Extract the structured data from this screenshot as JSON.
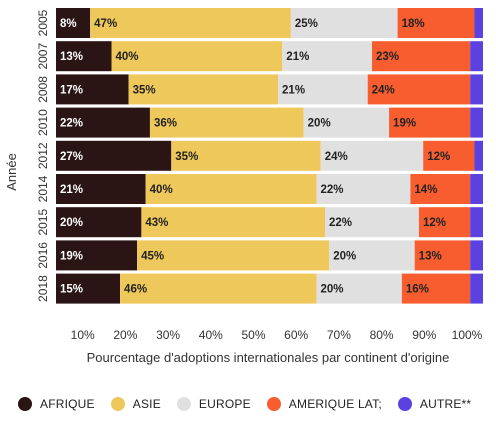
{
  "chart_data": {
    "type": "bar",
    "orientation": "horizontal",
    "stacked": true,
    "percent": true,
    "categories": [
      "2005",
      "2007",
      "2008",
      "2010",
      "2012",
      "2014",
      "2015",
      "2016",
      "2018"
    ],
    "series": [
      {
        "name": "AFRIQUE",
        "values": [
          8,
          13,
          17,
          22,
          27,
          21,
          20,
          19,
          15
        ],
        "color": "#2a1414"
      },
      {
        "name": "ASIE",
        "values": [
          47,
          40,
          35,
          36,
          35,
          40,
          43,
          45,
          46
        ],
        "color": "#eec85a"
      },
      {
        "name": "EUROPE",
        "values": [
          25,
          21,
          21,
          20,
          24,
          22,
          22,
          20,
          20
        ],
        "color": "#e0e0e0"
      },
      {
        "name": "AMERIQUE LAT;",
        "values": [
          18,
          23,
          24,
          19,
          12,
          14,
          12,
          13,
          16
        ],
        "color": "#f85d2f"
      },
      {
        "name": "AUTRE**",
        "values": [
          2,
          3,
          3,
          3,
          2,
          3,
          3,
          3,
          3
        ],
        "color": "#5b42e0"
      }
    ],
    "data_labels": [
      [
        "8%",
        "47%",
        "25%",
        "18%",
        ""
      ],
      [
        "13%",
        "40%",
        "21%",
        "23%",
        ""
      ],
      [
        "17%",
        "35%",
        "21%",
        "24%",
        ""
      ],
      [
        "22%",
        "36%",
        "20%",
        "19%",
        ""
      ],
      [
        "27%",
        "35%",
        "24%",
        "12%",
        ""
      ],
      [
        "21%",
        "40%",
        "22%",
        "14%",
        ""
      ],
      [
        "20%",
        "43%",
        "22%",
        "12%",
        ""
      ],
      [
        "19%",
        "45%",
        "20%",
        "13%",
        ""
      ],
      [
        "15%",
        "46%",
        "20%",
        "16%",
        ""
      ]
    ],
    "xlabel": "Pourcentage d'adoptions internationales par continent d'origine",
    "ylabel": "Année",
    "xlim": [
      0,
      100
    ],
    "xticks": [
      "10%",
      "20%",
      "30%",
      "40%",
      "50%",
      "60%",
      "70%",
      "80%",
      "90%",
      "100%"
    ],
    "legend_position": "bottom",
    "grid": false
  }
}
